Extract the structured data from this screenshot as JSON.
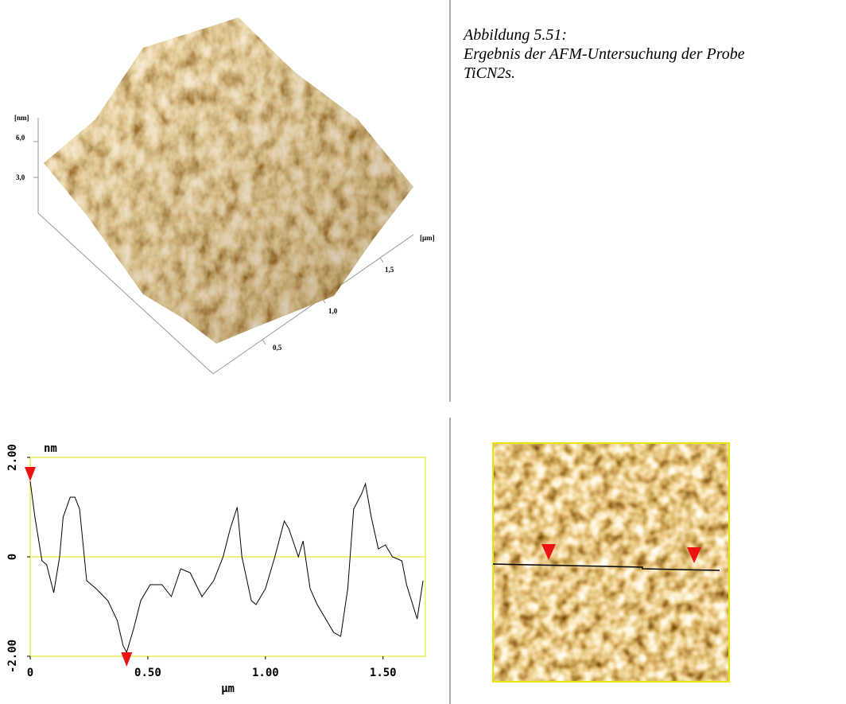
{
  "caption": {
    "label": "Abbildung 5.51:",
    "lines": [
      "Ergebnis der AFM-Untersuchung der Probe",
      "TiCN2s."
    ]
  },
  "afm_3d": {
    "z_unit": "[nm]",
    "z_labels": [
      "6,0",
      "3,0"
    ],
    "xy_unit": "[µm]",
    "x_labels": [
      "1,5",
      "1,0",
      "0,5"
    ]
  },
  "chart_data": {
    "type": "line",
    "x_label": "µm",
    "y_label": "nm",
    "color": "#000000",
    "frame_color": "#e6e600",
    "x": [
      0,
      0.02,
      0.05,
      0.07,
      0.1,
      0.125,
      0.14,
      0.17,
      0.19,
      0.21,
      0.24,
      0.28,
      0.33,
      0.37,
      0.395,
      0.41,
      0.44,
      0.47,
      0.51,
      0.56,
      0.6,
      0.64,
      0.68,
      0.73,
      0.78,
      0.82,
      0.85,
      0.88,
      0.9,
      0.94,
      0.96,
      1.0,
      1.04,
      1.08,
      1.1,
      1.14,
      1.16,
      1.19,
      1.22,
      1.26,
      1.29,
      1.32,
      1.35,
      1.375,
      1.41,
      1.425,
      1.45,
      1.48,
      1.51,
      1.54,
      1.58,
      1.6,
      1.645,
      1.67
    ],
    "values": [
      1.52,
      0.8,
      -0.08,
      -0.16,
      -0.72,
      0,
      0.8,
      1.2,
      1.2,
      0.96,
      -0.48,
      -0.64,
      -0.88,
      -1.28,
      -1.79,
      -1.92,
      -1.44,
      -0.88,
      -0.56,
      -0.56,
      -0.8,
      -0.24,
      -0.32,
      -0.8,
      -0.48,
      0,
      0.56,
      1.0,
      0,
      -0.88,
      -0.96,
      -0.64,
      0,
      0.72,
      0.56,
      0,
      0.32,
      -0.64,
      -0.96,
      -1.28,
      -1.52,
      -1.6,
      -0.64,
      0.96,
      1.28,
      1.47,
      0.8,
      0.16,
      0.24,
      0,
      -0.08,
      -0.56,
      -1.25,
      -0.48
    ],
    "xlim": [
      0,
      1.68
    ],
    "ylim": [
      -2,
      2
    ],
    "xticks": [
      0,
      {
        "value": 0.5,
        "label": "0.50"
      },
      {
        "value": 1,
        "label": "1.00"
      },
      {
        "value": 1.5,
        "label": "1.50"
      }
    ],
    "yticks": [
      {
        "value": -2,
        "label": "-2.00"
      },
      0,
      {
        "value": 2,
        "label": "2.00"
      }
    ],
    "zero_line": true
  }
}
